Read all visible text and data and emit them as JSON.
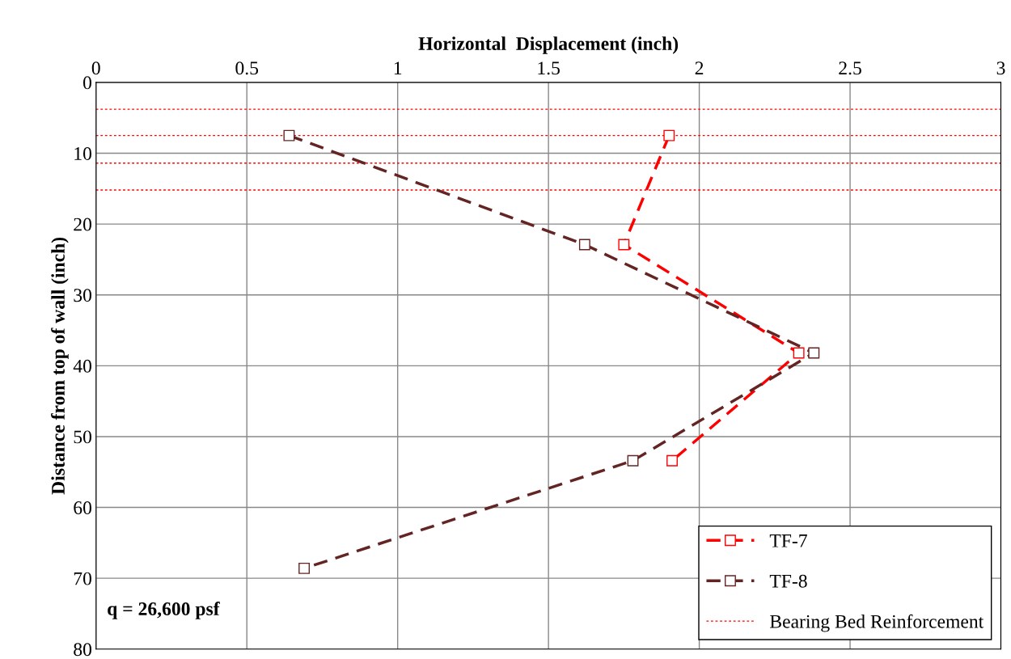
{
  "chart_data": {
    "type": "line",
    "xlabel": "Horizontal  Displacement (inch)",
    "ylabel": "Distance from top of wall (inch)",
    "xlim": [
      0,
      3
    ],
    "xticks": [
      0,
      0.5,
      1,
      1.5,
      2,
      2.5,
      3
    ],
    "ylim": [
      80,
      0
    ],
    "yticks": [
      0,
      10,
      20,
      30,
      40,
      50,
      60,
      70,
      80
    ],
    "grid": true,
    "legend": "bottom right",
    "marker": "square",
    "line_style": "dashed",
    "series": [
      {
        "name": "TF-7",
        "color": "#ff0000",
        "x": [
          1.9,
          1.75,
          2.33,
          1.91
        ],
        "values": [
          7.5,
          22.9,
          38.2,
          53.4
        ]
      },
      {
        "name": "TF-8",
        "color": "#632523",
        "x": [
          0.64,
          1.62,
          2.38,
          1.78,
          0.69
        ],
        "values": [
          7.5,
          22.9,
          38.2,
          53.4,
          68.6
        ]
      }
    ],
    "ref_lines": [
      {
        "axis": "y",
        "value": 3.8,
        "label": "Bearing Bed Reinforcement",
        "color": "#ff0000",
        "line_style": "dotted"
      },
      {
        "axis": "y",
        "value": 7.5,
        "color": "#ff0000",
        "line_style": "dotted"
      },
      {
        "axis": "y",
        "value": 11.4,
        "color": "#ff0000",
        "line_style": "dotted"
      },
      {
        "axis": "y",
        "value": 15.2,
        "color": "#ff0000",
        "line_style": "dotted"
      }
    ],
    "annotations": [
      "q = 26,600 psf"
    ]
  }
}
